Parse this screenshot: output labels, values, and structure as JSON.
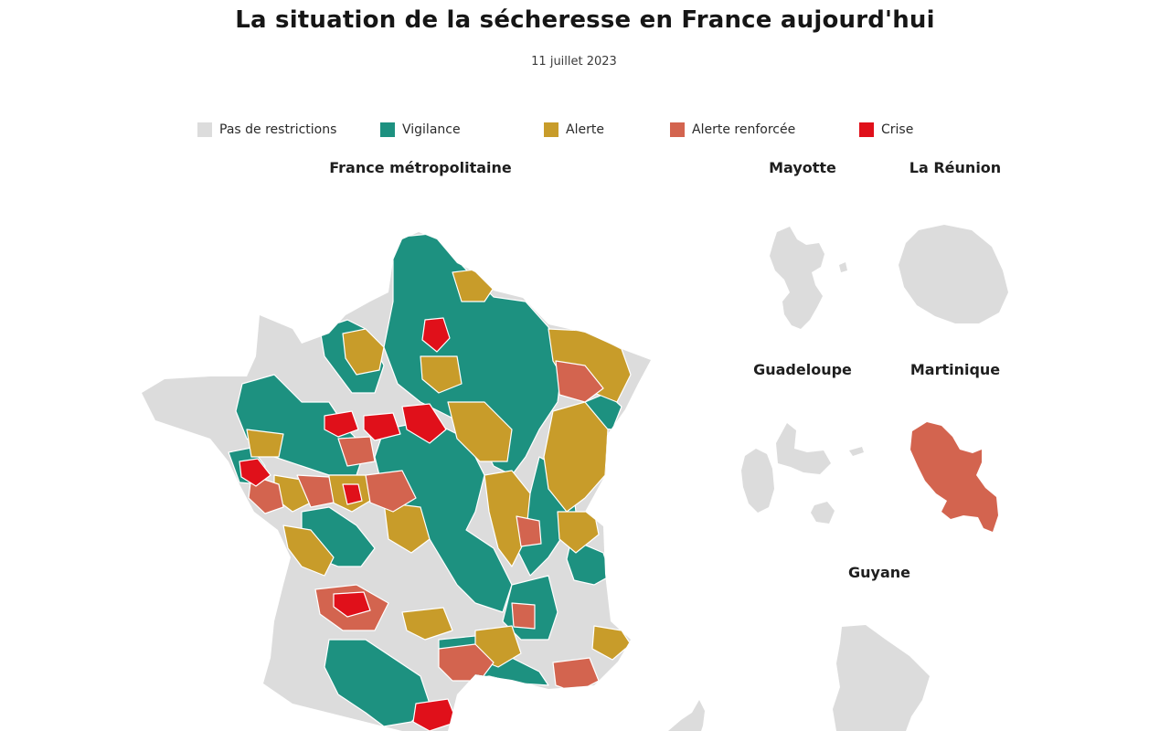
{
  "title": "La situation de la sécheresse en France aujourd'hui",
  "date": "11 juillet 2023",
  "legend": [
    {
      "label": "Pas de restrictions",
      "color": "#dcdcdc"
    },
    {
      "label": "Vigilance",
      "color": "#1d9180"
    },
    {
      "label": "Alerte",
      "color": "#c89c2a"
    },
    {
      "label": "Alerte renforcée",
      "color": "#d3644f"
    },
    {
      "label": "Crise",
      "color": "#e0101a"
    }
  ],
  "regions": {
    "metropole": "France métropolitaine",
    "mayotte": "Mayotte",
    "reunion": "La Réunion",
    "guadeloupe": "Guadeloupe",
    "martinique": "Martinique",
    "guyane": "Guyane"
  },
  "region_status": {
    "mayotte": "Pas de restrictions",
    "reunion": "Pas de restrictions",
    "guadeloupe": "Pas de restrictions",
    "martinique": "Alerte renforcée",
    "guyane": "Pas de restrictions"
  }
}
